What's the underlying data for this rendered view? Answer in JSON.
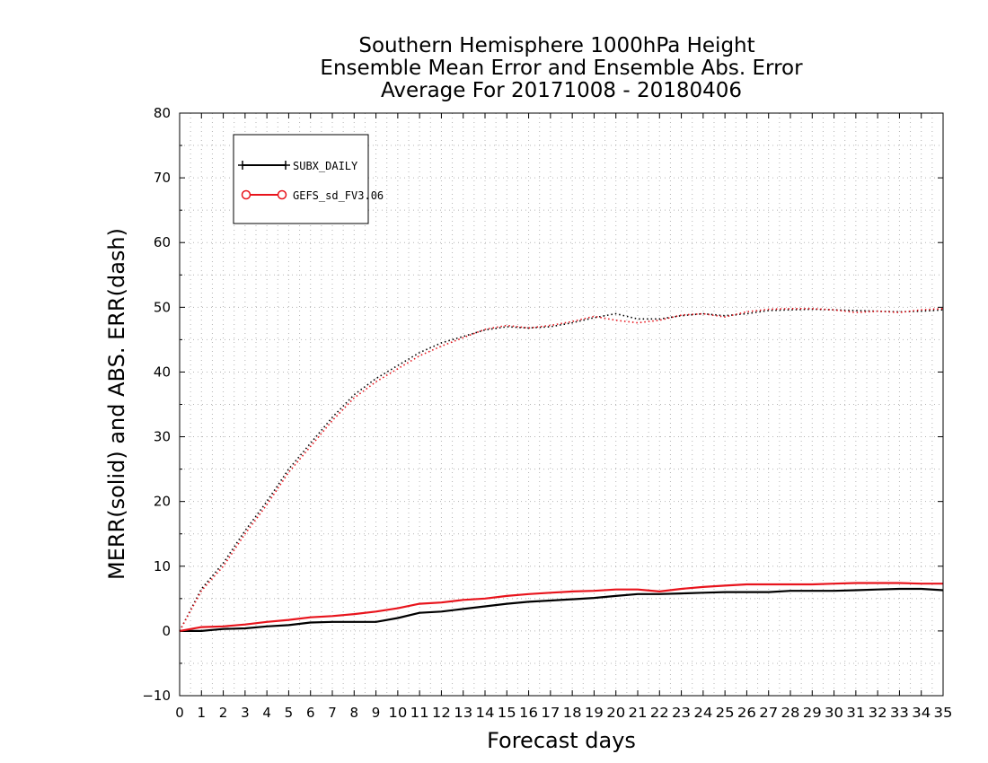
{
  "chart_data": {
    "type": "line",
    "title": [
      "Southern Hemisphere 1000hPa Height",
      "Ensemble Mean Error and Ensemble Abs. Error",
      "Average For 20171008 - 20180406"
    ],
    "xlabel": "Forecast days",
    "ylabel": "MERR(solid) and ABS. ERR(dash)",
    "xlim": [
      0,
      35
    ],
    "ylim": [
      -10,
      80
    ],
    "x_ticks": [
      0,
      1,
      2,
      3,
      4,
      5,
      6,
      7,
      8,
      9,
      10,
      11,
      12,
      13,
      14,
      15,
      16,
      17,
      18,
      19,
      20,
      21,
      22,
      23,
      24,
      25,
      26,
      27,
      28,
      29,
      30,
      31,
      32,
      33,
      34,
      35
    ],
    "y_ticks": [
      -10,
      0,
      10,
      20,
      30,
      40,
      50,
      60,
      70,
      80
    ],
    "grid": true,
    "legend_position": "top-left",
    "x": [
      0,
      1,
      2,
      3,
      4,
      5,
      6,
      7,
      8,
      9,
      10,
      11,
      12,
      13,
      14,
      15,
      16,
      17,
      18,
      19,
      20,
      21,
      22,
      23,
      24,
      25,
      26,
      27,
      28,
      29,
      30,
      31,
      32,
      33,
      34,
      35
    ],
    "series": [
      {
        "name": "SUBX_DAILY",
        "color": "#000000",
        "marker": "plus",
        "merr": [
          0,
          0,
          0.3,
          0.4,
          0.7,
          0.9,
          1.3,
          1.4,
          1.4,
          1.4,
          2.0,
          2.8,
          3.0,
          3.4,
          3.8,
          4.2,
          4.5,
          4.7,
          4.9,
          5.1,
          5.4,
          5.7,
          5.7,
          5.8,
          5.9,
          6.0,
          6.0,
          6.0,
          6.2,
          6.2,
          6.2,
          6.3,
          6.4,
          6.5,
          6.5,
          6.3
        ],
        "abs_err": [
          0,
          6.5,
          10.5,
          15.5,
          20.0,
          25.0,
          29.0,
          33.0,
          36.5,
          39.0,
          41.0,
          43.0,
          44.5,
          45.5,
          46.5,
          47.0,
          46.8,
          47.0,
          47.6,
          48.4,
          49.0,
          48.2,
          48.2,
          48.7,
          49.0,
          48.7,
          49.0,
          49.5,
          49.6,
          49.7,
          49.6,
          49.5,
          49.4,
          49.3,
          49.4,
          49.6
        ]
      },
      {
        "name": "GEFS_sd_FV3.06",
        "color": "#e8141c",
        "marker": "circle",
        "merr": [
          0,
          0.6,
          0.7,
          1.0,
          1.4,
          1.7,
          2.1,
          2.3,
          2.6,
          3.0,
          3.5,
          4.2,
          4.4,
          4.8,
          5.0,
          5.4,
          5.7,
          5.9,
          6.1,
          6.2,
          6.4,
          6.4,
          6.1,
          6.5,
          6.8,
          7.0,
          7.2,
          7.2,
          7.2,
          7.2,
          7.3,
          7.4,
          7.4,
          7.4,
          7.3,
          7.3
        ],
        "abs_err": [
          0,
          6.2,
          10.0,
          15.0,
          19.5,
          24.5,
          28.5,
          32.5,
          36.0,
          38.5,
          40.5,
          42.5,
          44.0,
          45.3,
          46.6,
          47.2,
          46.8,
          47.2,
          47.8,
          48.6,
          48.0,
          47.6,
          48.0,
          48.8,
          49.0,
          48.5,
          49.3,
          49.7,
          49.8,
          49.8,
          49.6,
          49.2,
          49.4,
          49.2,
          49.6,
          49.8
        ]
      }
    ]
  }
}
